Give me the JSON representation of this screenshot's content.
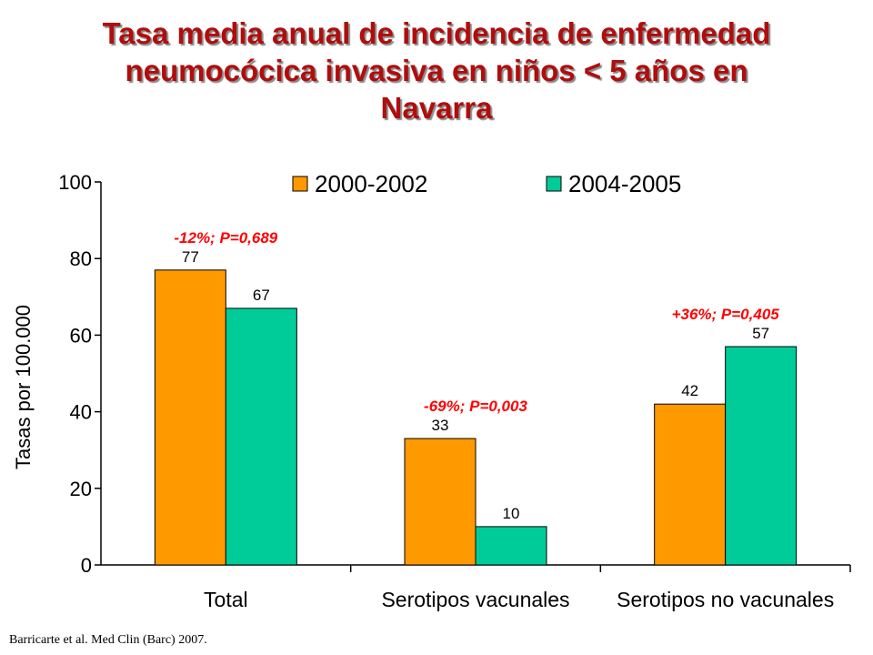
{
  "title_lines": [
    "Tasa media anual de incidencia de enfermedad",
    "neumocócica invasiva en niños < 5 años en",
    "Navarra"
  ],
  "citation": "Barricarte et al. Med Clin (Barc) 2007.",
  "chart_data": {
    "type": "bar",
    "categories": [
      "Total",
      "Serotipos vacunales",
      "Serotipos no vacunales"
    ],
    "series": [
      {
        "name": "2000-2002",
        "values": [
          77,
          33,
          42
        ],
        "color": "#ff9900"
      },
      {
        "name": "2004-2005",
        "values": [
          67,
          10,
          57
        ],
        "color": "#00cc99"
      }
    ],
    "ylabel": "Tasas por 100.000",
    "ylim": [
      0,
      100
    ],
    "yticks": [
      0,
      20,
      40,
      60,
      80,
      100
    ],
    "grid": false,
    "legend_position": "top",
    "annotations": [
      "-12%; P=0,689",
      "-69%; P=0,003",
      "+36%; P=0,405"
    ],
    "annotation_color": "#ff0000"
  }
}
